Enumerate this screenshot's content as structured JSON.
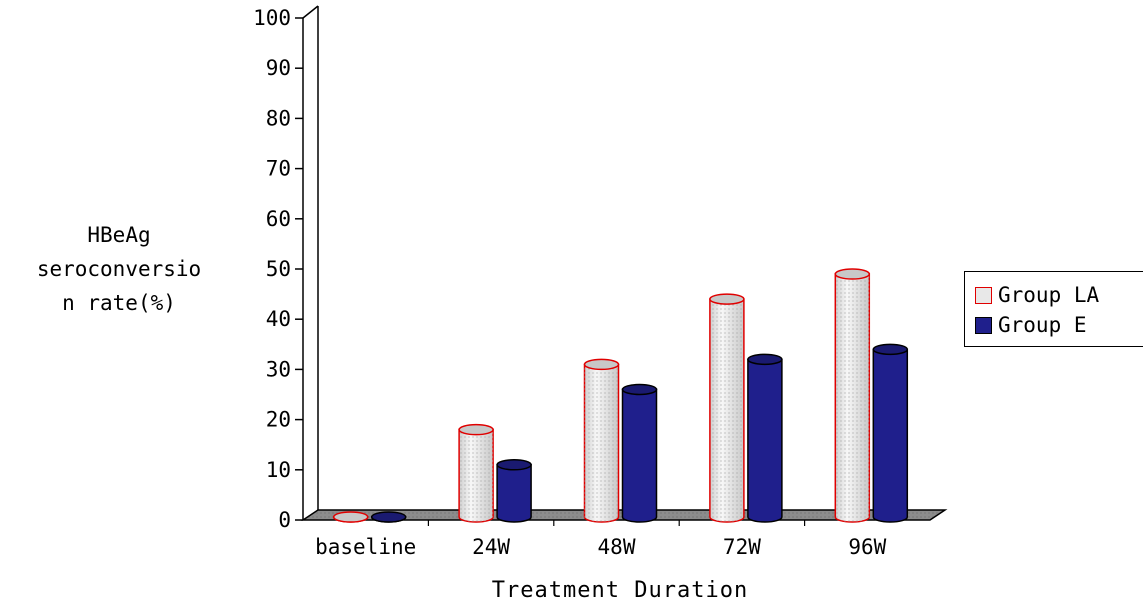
{
  "chart_data": {
    "type": "bar",
    "title": "",
    "ylabel_lines": [
      "HBeAg",
      "seroconversio",
      "n rate(%)"
    ],
    "xlabel": "Treatment Duration",
    "categories": [
      "baseline",
      "24W",
      "48W",
      "72W",
      "96W"
    ],
    "y_ticks": [
      "0",
      "10",
      "20",
      "30",
      "40",
      "50",
      "60",
      "70",
      "80",
      "90",
      "100"
    ],
    "ylim": [
      0,
      100
    ],
    "series": [
      {
        "name": "Group LA",
        "values": [
          0,
          18,
          31,
          44,
          49
        ],
        "color": "#e6e6e6",
        "edge": "#e00000"
      },
      {
        "name": "Group E",
        "values": [
          0,
          11,
          26,
          32,
          34
        ],
        "color": "#1f1f8c",
        "edge": "#000000"
      }
    ],
    "legend": "right",
    "grid": false,
    "style": "3d-cylinder"
  }
}
